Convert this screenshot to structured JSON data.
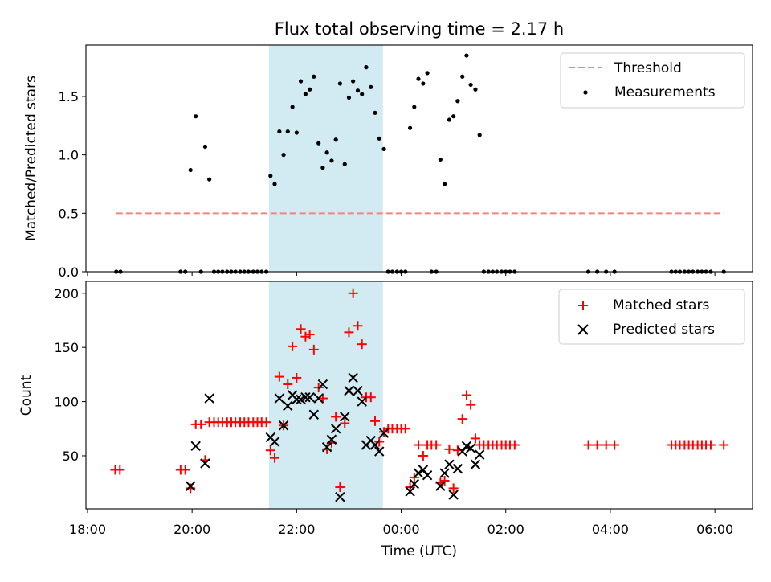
{
  "chart_data": {
    "title": "Flux total observing time = 2.17 h",
    "xlabel": "Time (UTC)",
    "x_units": "hours since 18:00 UTC (18 = 18:00, 24 = 00:00 next day)",
    "xlim": [
      17.97,
      30.72
    ],
    "x_ticks": [
      {
        "value": 18,
        "label": "18:00"
      },
      {
        "value": 20,
        "label": "20:00"
      },
      {
        "value": 22,
        "label": "22:00"
      },
      {
        "value": 24,
        "label": "00:00"
      },
      {
        "value": 26,
        "label": "02:00"
      },
      {
        "value": 28,
        "label": "04:00"
      },
      {
        "value": 30,
        "label": "06:00"
      }
    ],
    "shaded_span": {
      "x": [
        21.47,
        23.65
      ],
      "color": "#add8e6"
    },
    "top": {
      "type": "scatter",
      "ylabel": "Matched/Predicted stars",
      "ylim": [
        0,
        1.94
      ],
      "y_ticks": [
        "0.0",
        "0.5",
        "1.0",
        "1.5"
      ],
      "threshold": {
        "name": "Threshold",
        "value": 0.5,
        "x_range": [
          18.55,
          30.17
        ],
        "color": "#ff7f7f"
      },
      "measurements_name": "Measurements",
      "measurements": [
        [
          18.55,
          0
        ],
        [
          18.63,
          0
        ],
        [
          19.78,
          0
        ],
        [
          19.87,
          0
        ],
        [
          19.97,
          0.87
        ],
        [
          20.07,
          1.33
        ],
        [
          20.17,
          0
        ],
        [
          20.25,
          1.07
        ],
        [
          20.33,
          0.79
        ],
        [
          20.42,
          0
        ],
        [
          20.5,
          0
        ],
        [
          20.58,
          0
        ],
        [
          20.67,
          0
        ],
        [
          20.75,
          0
        ],
        [
          20.83,
          0
        ],
        [
          20.92,
          0
        ],
        [
          21.0,
          0
        ],
        [
          21.08,
          0
        ],
        [
          21.17,
          0
        ],
        [
          21.25,
          0
        ],
        [
          21.33,
          0
        ],
        [
          21.42,
          0
        ],
        [
          21.5,
          0.82
        ],
        [
          21.58,
          0.75
        ],
        [
          21.67,
          1.2
        ],
        [
          21.75,
          1.0
        ],
        [
          21.83,
          1.2
        ],
        [
          21.92,
          1.41
        ],
        [
          22.0,
          1.19
        ],
        [
          22.08,
          1.63
        ],
        [
          22.17,
          1.52
        ],
        [
          22.25,
          1.56
        ],
        [
          22.33,
          1.67
        ],
        [
          22.42,
          1.1
        ],
        [
          22.5,
          0.89
        ],
        [
          22.58,
          1.02
        ],
        [
          22.67,
          0.95
        ],
        [
          22.75,
          1.13
        ],
        [
          22.83,
          1.61
        ],
        [
          22.92,
          0.92
        ],
        [
          23.0,
          1.49
        ],
        [
          23.08,
          1.63
        ],
        [
          23.17,
          1.55
        ],
        [
          23.25,
          1.52
        ],
        [
          23.33,
          1.75
        ],
        [
          23.42,
          1.58
        ],
        [
          23.5,
          1.36
        ],
        [
          23.58,
          1.14
        ],
        [
          23.67,
          1.05
        ],
        [
          23.75,
          0
        ],
        [
          23.83,
          0
        ],
        [
          23.92,
          0
        ],
        [
          24.0,
          0
        ],
        [
          24.08,
          0
        ],
        [
          24.17,
          1.23
        ],
        [
          24.25,
          1.41
        ],
        [
          24.33,
          1.65
        ],
        [
          24.42,
          1.61
        ],
        [
          24.5,
          1.7
        ],
        [
          24.58,
          0
        ],
        [
          24.67,
          0
        ],
        [
          24.75,
          0.96
        ],
        [
          24.83,
          0.75
        ],
        [
          24.92,
          1.3
        ],
        [
          25.0,
          1.33
        ],
        [
          25.08,
          1.46
        ],
        [
          25.17,
          1.67
        ],
        [
          25.25,
          1.85
        ],
        [
          25.33,
          1.6
        ],
        [
          25.42,
          1.56
        ],
        [
          25.5,
          1.17
        ],
        [
          25.58,
          0
        ],
        [
          25.67,
          0
        ],
        [
          25.75,
          0
        ],
        [
          25.83,
          0
        ],
        [
          25.92,
          0
        ],
        [
          26.0,
          0
        ],
        [
          26.08,
          0
        ],
        [
          26.17,
          0
        ],
        [
          27.58,
          0
        ],
        [
          27.75,
          0
        ],
        [
          27.92,
          0
        ],
        [
          28.08,
          0
        ],
        [
          29.17,
          0
        ],
        [
          29.25,
          0
        ],
        [
          29.33,
          0
        ],
        [
          29.42,
          0
        ],
        [
          29.5,
          0
        ],
        [
          29.58,
          0
        ],
        [
          29.67,
          0
        ],
        [
          29.75,
          0
        ],
        [
          29.83,
          0
        ],
        [
          29.92,
          0
        ],
        [
          30.17,
          0
        ]
      ]
    },
    "bottom": {
      "type": "scatter",
      "ylabel": "Count",
      "ylim": [
        1,
        211
      ],
      "y_ticks": [
        50,
        100,
        150,
        200
      ],
      "series": [
        {
          "name": "Matched stars",
          "marker": "+",
          "color": "#ff0000",
          "points": [
            [
              18.53,
              37
            ],
            [
              18.62,
              37
            ],
            [
              19.78,
              37
            ],
            [
              19.87,
              37
            ],
            [
              19.97,
              20
            ],
            [
              20.07,
              79
            ],
            [
              20.17,
              79
            ],
            [
              20.25,
              46
            ],
            [
              20.33,
              81
            ],
            [
              20.42,
              81
            ],
            [
              20.5,
              81
            ],
            [
              20.58,
              81
            ],
            [
              20.67,
              81
            ],
            [
              20.75,
              81
            ],
            [
              20.83,
              81
            ],
            [
              20.92,
              81
            ],
            [
              21.0,
              81
            ],
            [
              21.08,
              81
            ],
            [
              21.17,
              81
            ],
            [
              21.25,
              81
            ],
            [
              21.33,
              81
            ],
            [
              21.42,
              81
            ],
            [
              21.5,
              55
            ],
            [
              21.58,
              48
            ],
            [
              21.67,
              123
            ],
            [
              21.75,
              78
            ],
            [
              21.83,
              116
            ],
            [
              21.92,
              151
            ],
            [
              22.0,
              122
            ],
            [
              22.08,
              167
            ],
            [
              22.17,
              160
            ],
            [
              22.25,
              162
            ],
            [
              22.33,
              148
            ],
            [
              22.42,
              113
            ],
            [
              22.5,
              103
            ],
            [
              22.58,
              56
            ],
            [
              22.67,
              62
            ],
            [
              22.75,
              86
            ],
            [
              22.83,
              21
            ],
            [
              22.92,
              80
            ],
            [
              23.0,
              164
            ],
            [
              23.08,
              200
            ],
            [
              23.17,
              170
            ],
            [
              23.25,
              153
            ],
            [
              23.33,
              104
            ],
            [
              23.42,
              104
            ],
            [
              23.5,
              82
            ],
            [
              23.58,
              63
            ],
            [
              23.67,
              72
            ],
            [
              23.75,
              75
            ],
            [
              23.83,
              75
            ],
            [
              23.92,
              75
            ],
            [
              24.0,
              75
            ],
            [
              24.08,
              75
            ],
            [
              24.17,
              21
            ],
            [
              24.25,
              30
            ],
            [
              24.33,
              60
            ],
            [
              24.42,
              50
            ],
            [
              24.5,
              60
            ],
            [
              24.58,
              60
            ],
            [
              24.67,
              60
            ],
            [
              24.75,
              25
            ],
            [
              24.83,
              27
            ],
            [
              24.92,
              56
            ],
            [
              25.0,
              20
            ],
            [
              25.08,
              55
            ],
            [
              25.17,
              84
            ],
            [
              25.25,
              106
            ],
            [
              25.33,
              97
            ],
            [
              25.42,
              66
            ],
            [
              25.5,
              60
            ],
            [
              25.58,
              60
            ],
            [
              25.67,
              60
            ],
            [
              25.75,
              60
            ],
            [
              25.83,
              60
            ],
            [
              25.92,
              60
            ],
            [
              26.0,
              60
            ],
            [
              26.08,
              60
            ],
            [
              26.17,
              60
            ],
            [
              27.58,
              60
            ],
            [
              27.75,
              60
            ],
            [
              27.92,
              60
            ],
            [
              28.08,
              60
            ],
            [
              29.17,
              60
            ],
            [
              29.25,
              60
            ],
            [
              29.33,
              60
            ],
            [
              29.42,
              60
            ],
            [
              29.5,
              60
            ],
            [
              29.58,
              60
            ],
            [
              29.67,
              60
            ],
            [
              29.75,
              60
            ],
            [
              29.83,
              60
            ],
            [
              29.92,
              60
            ],
            [
              30.17,
              60
            ]
          ]
        },
        {
          "name": "Predicted stars",
          "marker": "x",
          "color": "#000000",
          "points": [
            [
              19.97,
              22
            ],
            [
              20.07,
              59
            ],
            [
              20.25,
              43
            ],
            [
              20.33,
              103
            ],
            [
              21.5,
              67
            ],
            [
              21.58,
              63
            ],
            [
              21.67,
              103
            ],
            [
              21.75,
              78
            ],
            [
              21.83,
              96
            ],
            [
              21.92,
              106
            ],
            [
              22.0,
              102
            ],
            [
              22.08,
              102
            ],
            [
              22.17,
              104
            ],
            [
              22.25,
              104
            ],
            [
              22.33,
              88
            ],
            [
              22.42,
              103
            ],
            [
              22.5,
              116
            ],
            [
              22.58,
              58
            ],
            [
              22.67,
              65
            ],
            [
              22.75,
              75
            ],
            [
              22.83,
              12
            ],
            [
              22.92,
              86
            ],
            [
              23.0,
              110
            ],
            [
              23.08,
              122
            ],
            [
              23.17,
              110
            ],
            [
              23.25,
              100
            ],
            [
              23.33,
              60
            ],
            [
              23.42,
              64
            ],
            [
              23.5,
              60
            ],
            [
              23.58,
              54
            ],
            [
              23.67,
              71
            ],
            [
              24.17,
              17
            ],
            [
              24.25,
              24
            ],
            [
              24.33,
              34
            ],
            [
              24.42,
              37
            ],
            [
              24.5,
              32
            ],
            [
              24.75,
              22
            ],
            [
              24.83,
              34
            ],
            [
              24.92,
              42
            ],
            [
              25.0,
              14
            ],
            [
              25.08,
              38
            ],
            [
              25.17,
              54
            ],
            [
              25.25,
              59
            ],
            [
              25.33,
              57
            ],
            [
              25.42,
              42
            ],
            [
              25.5,
              51
            ]
          ]
        }
      ]
    }
  }
}
